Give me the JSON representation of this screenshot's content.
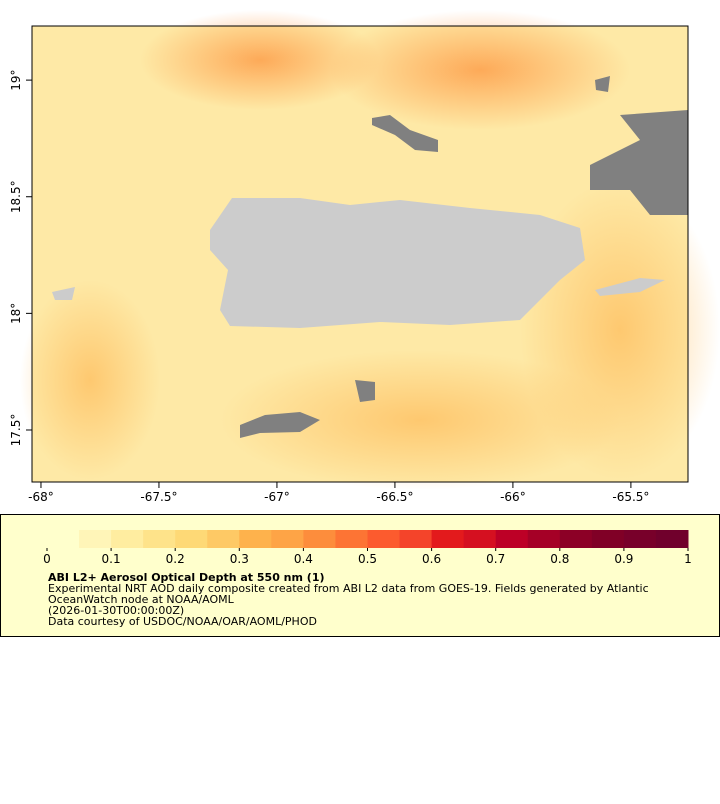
{
  "map": {
    "xlim": [
      -68.038,
      -65.258
    ],
    "ylim": [
      17.277,
      19.232
    ],
    "xticks": [
      {
        "value": -68,
        "label": "-68°"
      },
      {
        "value": -67.5,
        "label": "-67.5°"
      },
      {
        "value": -67,
        "label": "-67°"
      },
      {
        "value": -66.5,
        "label": "-66.5°"
      },
      {
        "value": -66,
        "label": "-66°"
      },
      {
        "value": -65.5,
        "label": "-65.5°"
      }
    ],
    "yticks": [
      {
        "value": 17.5,
        "label": "17.5°"
      },
      {
        "value": 18,
        "label": "18°"
      },
      {
        "value": 18.5,
        "label": "18.5°"
      },
      {
        "value": 19,
        "label": "19°"
      }
    ]
  },
  "colorbar": {
    "lim": [
      0,
      1
    ],
    "ticks": [
      0,
      0.1,
      0.2,
      0.3,
      0.4,
      0.5,
      0.6,
      0.7,
      0.8,
      0.9,
      1
    ],
    "colors": [
      "#ffffcc",
      "#fff5b8",
      "#ffeda0",
      "#fee38a",
      "#fed976",
      "#fec965",
      "#feb24c",
      "#fea446",
      "#fd8d3c",
      "#fd7434",
      "#fc5b2e",
      "#f4442a",
      "#e31a1c",
      "#d51020",
      "#bd0026",
      "#a50026",
      "#8c0026",
      "#800026",
      "#78002a",
      "#70002c"
    ]
  },
  "legend": {
    "title": "ABI L2+ Aerosol Optical Depth at 550 nm (1)",
    "lines": [
      "Experimental NRT AOD daily composite created from ABI L2 data from GOES-19. Fields generated by Atlantic",
      "OceanWatch node at NOAA/AOML",
      "(2026-01-30T00:00:00Z)",
      "Data courtesy of USDOC/NOAA/OAR/AOML/PHOD"
    ]
  }
}
